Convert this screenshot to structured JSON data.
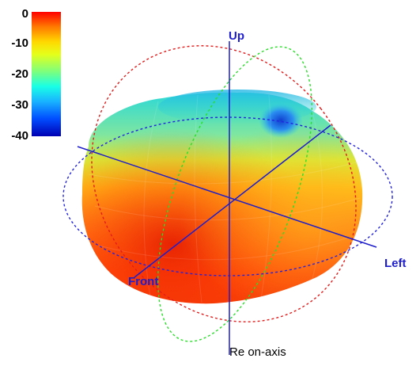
{
  "colorbar": {
    "ticks": [
      "0",
      "-10",
      "-20",
      "-30",
      "-40"
    ],
    "range": [
      -40,
      0
    ],
    "colors": [
      "#ff0000",
      "#ff7a00",
      "#ffd800",
      "#e6ff1a",
      "#7dff7d",
      "#19ffe6",
      "#19b3ff",
      "#004dff",
      "#0000b3"
    ]
  },
  "axes": {
    "up": "Up",
    "left": "Left",
    "front": "Front"
  },
  "caption": "Re on-axis",
  "colors": {
    "axis": "#1e1ecc",
    "ring_red": "#e41c1c",
    "ring_green": "#28e028",
    "ring_blue": "#2424e0"
  }
}
